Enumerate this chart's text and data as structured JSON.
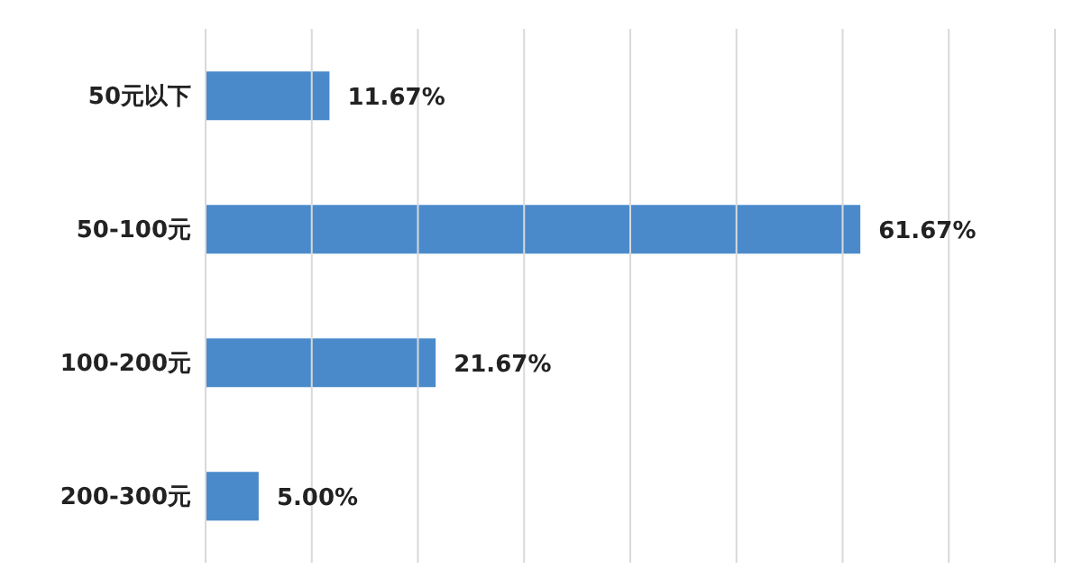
{
  "chart_data": {
    "type": "bar",
    "orientation": "horizontal",
    "categories": [
      "50元以下",
      "50-100元",
      "100-200元",
      "200-300元"
    ],
    "values": [
      11.67,
      61.67,
      21.67,
      5.0
    ],
    "value_labels": [
      "11.67%",
      "61.67%",
      "21.67%",
      "5.00%"
    ],
    "color": "#4a8acb",
    "xlim": [
      0,
      80
    ],
    "xticks": [
      {
        "value": 0,
        "label": null
      },
      {
        "value": 10,
        "label": null
      },
      {
        "value": 20,
        "label": null
      },
      {
        "value": 30,
        "label": null
      },
      {
        "value": 40,
        "label": null
      },
      {
        "value": 50,
        "label": null
      },
      {
        "value": 60,
        "label": null
      },
      {
        "value": 70,
        "label": null
      },
      {
        "value": 80,
        "label": null
      }
    ],
    "tick_labels": "y",
    "grid": "x",
    "legend": false
  }
}
